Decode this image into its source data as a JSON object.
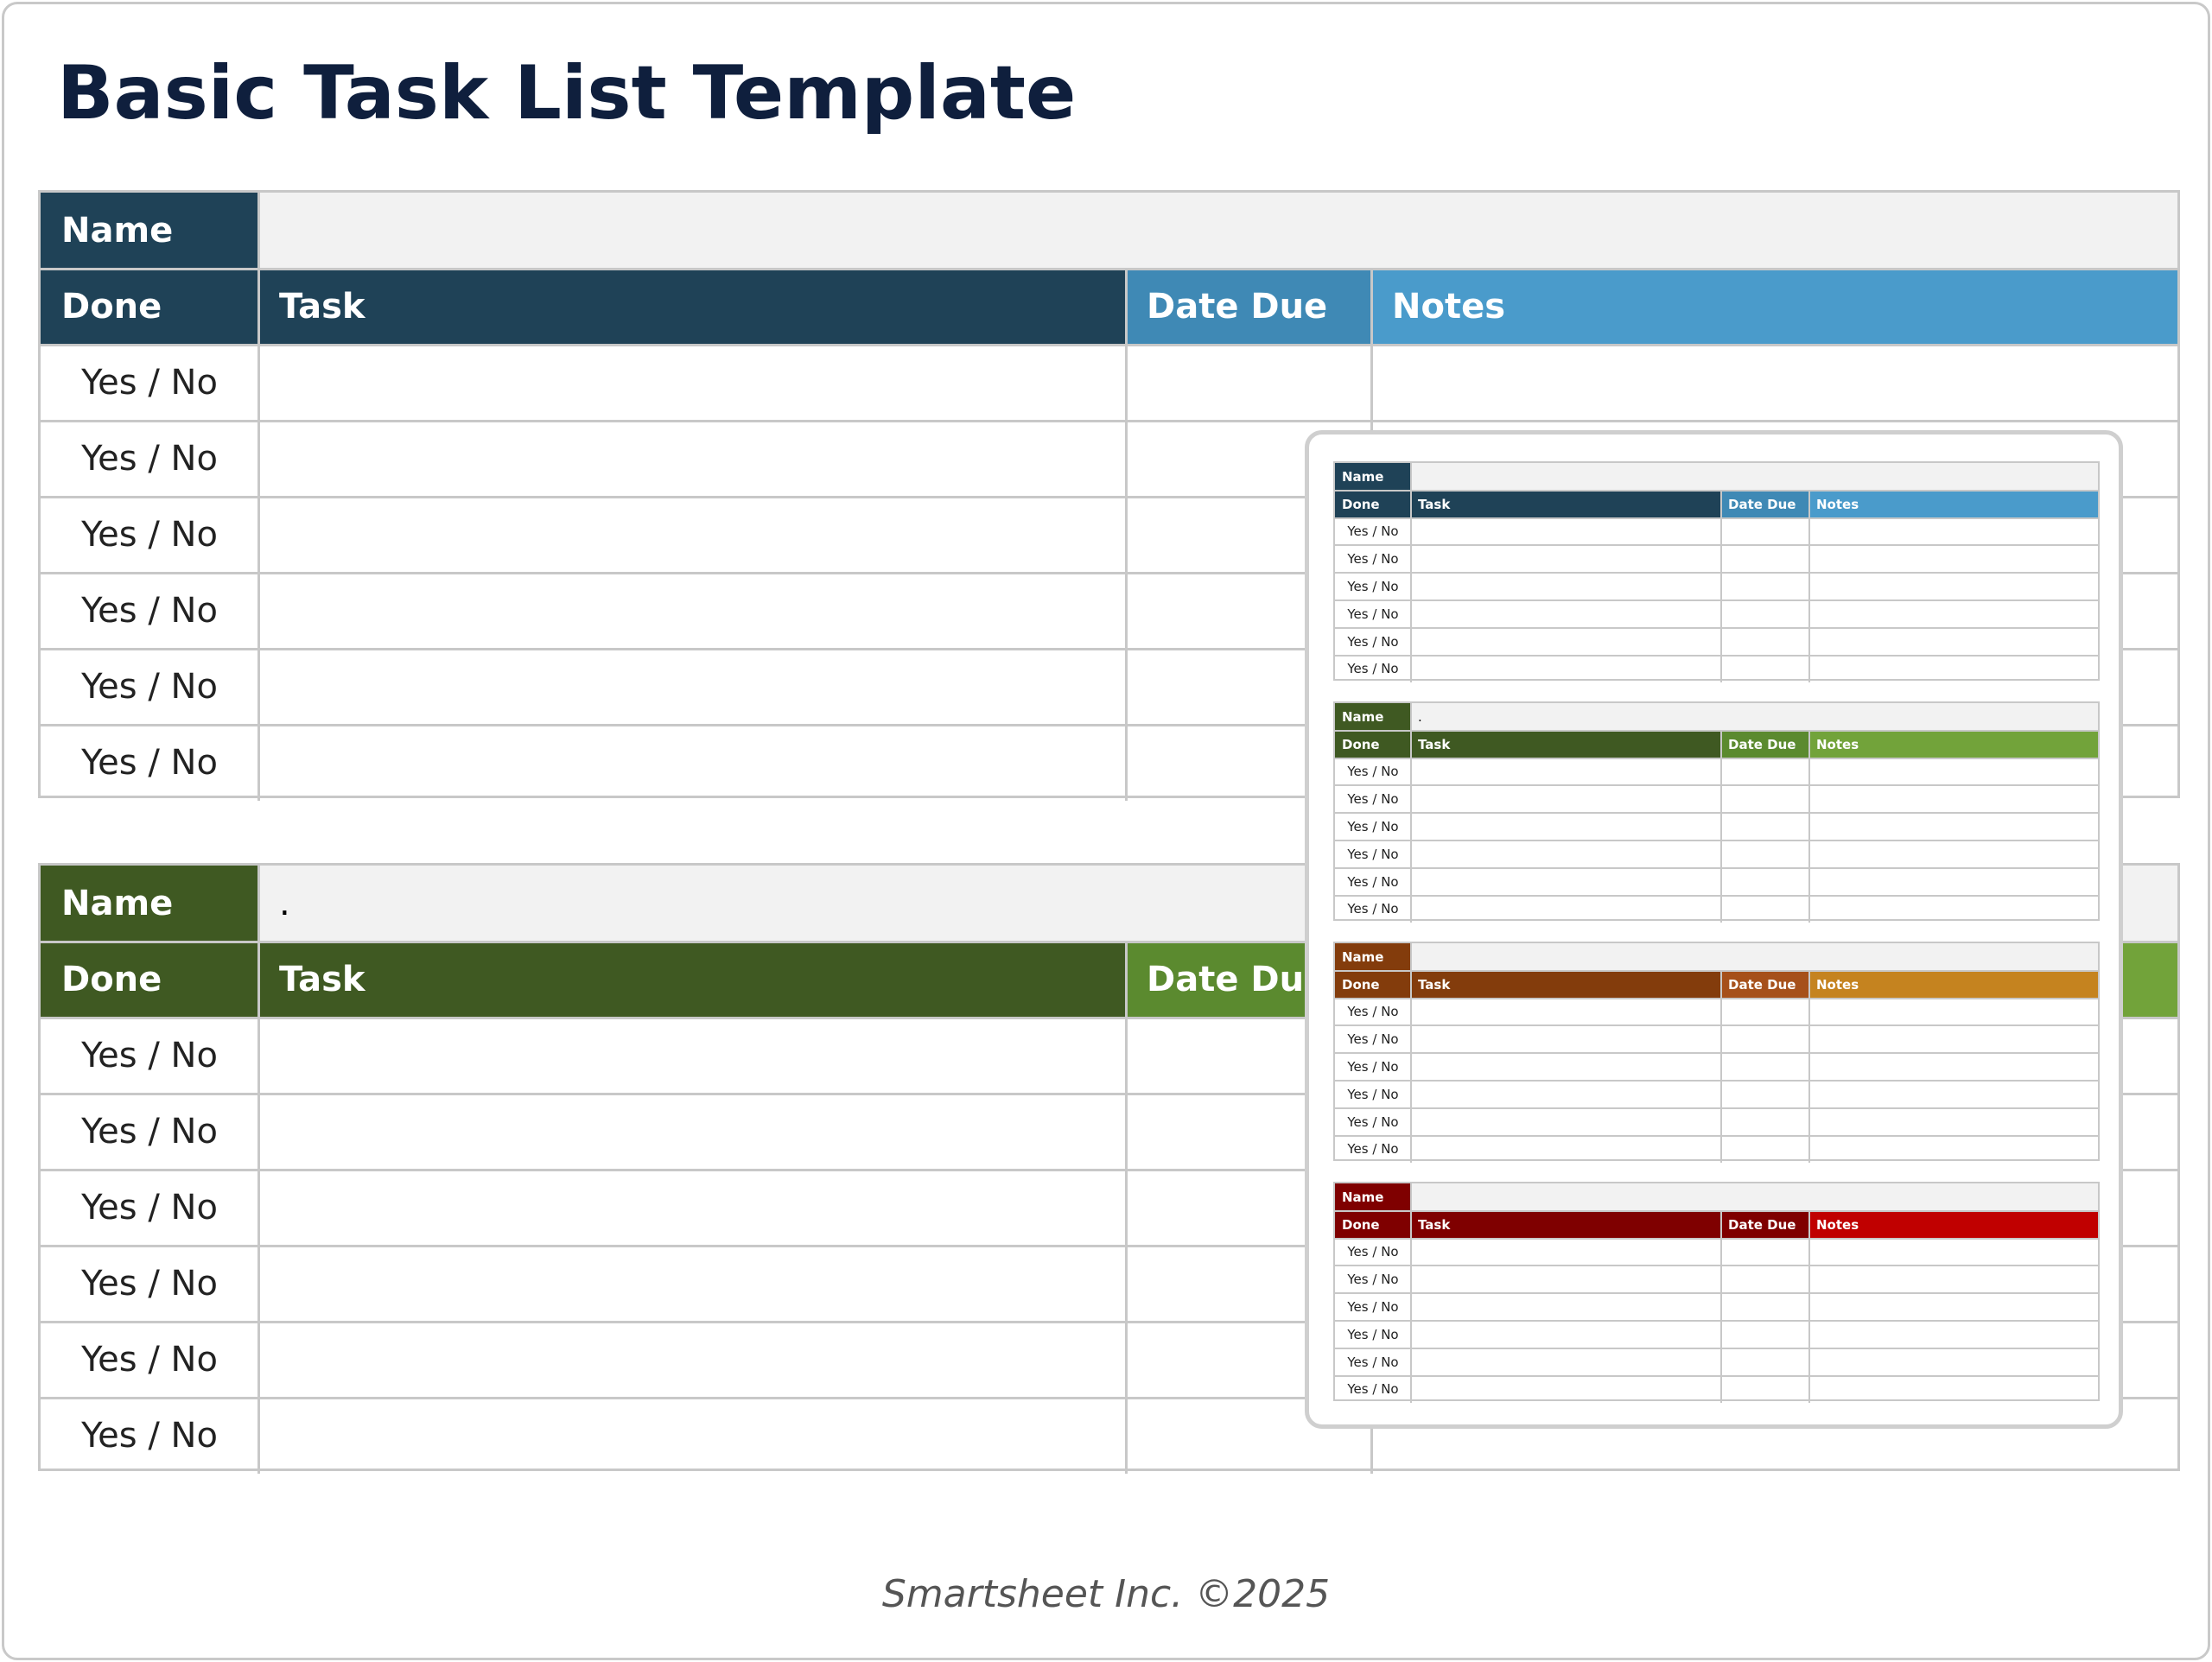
{
  "title": "Basic Task List Template",
  "footer": "Smartsheet Inc. ©2025",
  "labels": {
    "name": "Name",
    "done": "Done",
    "task": "Task",
    "date_due": "Date Due",
    "notes": "Notes",
    "yes_no": "Yes / No"
  },
  "main_tables": [
    {
      "name_value": "",
      "colors": {
        "dark": "#1f4257",
        "date_due": "#3f89b5",
        "notes": "#4a9bcb"
      },
      "rows": [
        "Yes / No",
        "Yes / No",
        "Yes / No",
        "Yes / No",
        "Yes / No",
        "Yes / No"
      ]
    },
    {
      "name_value": ".",
      "colors": {
        "dark": "#3f5922",
        "date_due": "#5b8a2f",
        "notes": "#72a33a"
      },
      "rows": [
        "Yes / No",
        "Yes / No",
        "Yes / No",
        "Yes / No",
        "Yes / No",
        "Yes / No"
      ]
    }
  ],
  "preview_tables": [
    {
      "name_value": "",
      "colors": {
        "dark": "#1f4257",
        "date_due": "#3f89b5",
        "notes": "#4a9bcb"
      },
      "rows": [
        "Yes / No",
        "Yes / No",
        "Yes / No",
        "Yes / No",
        "Yes / No",
        "Yes / No"
      ]
    },
    {
      "name_value": ".",
      "colors": {
        "dark": "#3f5922",
        "date_due": "#5b8a2f",
        "notes": "#72a33a"
      },
      "rows": [
        "Yes / No",
        "Yes / No",
        "Yes / No",
        "Yes / No",
        "Yes / No",
        "Yes / No"
      ]
    },
    {
      "name_value": "",
      "colors": {
        "dark": "#833c0c",
        "date_due": "#a6501a",
        "notes": "#c5831f"
      },
      "rows": [
        "Yes / No",
        "Yes / No",
        "Yes / No",
        "Yes / No",
        "Yes / No",
        "Yes / No"
      ]
    },
    {
      "name_value": "",
      "colors": {
        "dark": "#7f0000",
        "date_due": "#7f0000",
        "notes": "#c00000"
      },
      "rows": [
        "Yes / No",
        "Yes / No",
        "Yes / No",
        "Yes / No",
        "Yes / No",
        "Yes / No"
      ]
    }
  ]
}
